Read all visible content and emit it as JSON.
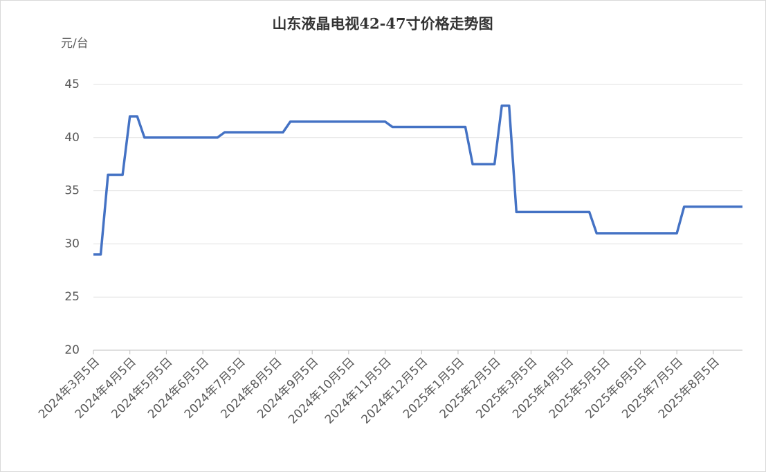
{
  "chart_data": {
    "type": "line",
    "title": "山东液晶电视42-47寸价格走势图",
    "y_label": "元/台",
    "categories": [
      "2024年3月5日",
      null,
      null,
      null,
      null,
      "2024年4月5日",
      null,
      null,
      null,
      null,
      "2024年5月5日",
      null,
      null,
      null,
      null,
      "2024年6月5日",
      null,
      null,
      null,
      null,
      "2024年7月5日",
      null,
      null,
      null,
      null,
      "2024年8月5日",
      null,
      null,
      null,
      null,
      "2024年9月5日",
      null,
      null,
      null,
      null,
      "2024年10月5日",
      null,
      null,
      null,
      null,
      "2024年11月5日",
      null,
      null,
      null,
      null,
      "2024年12月5日",
      null,
      null,
      null,
      null,
      "2025年1月5日",
      null,
      null,
      null,
      null,
      "2025年2月5日",
      null,
      null,
      null,
      null,
      "2025年3月5日",
      null,
      null,
      null,
      null,
      "2025年4月5日",
      null,
      null,
      null,
      null,
      "2025年5月5日",
      null,
      null,
      null,
      null,
      "2025年6月5日",
      null,
      null,
      null,
      null,
      "2025年7月5日",
      null,
      null,
      null,
      null,
      "2025年8月5日",
      null,
      null,
      null,
      null
    ],
    "values": [
      29,
      29,
      36.5,
      36.5,
      36.5,
      42,
      42,
      40,
      40,
      40,
      40,
      40,
      40,
      40,
      40,
      40,
      40,
      40,
      40.5,
      40.5,
      40.5,
      40.5,
      40.5,
      40.5,
      40.5,
      40.5,
      40.5,
      41.5,
      41.5,
      41.5,
      41.5,
      41.5,
      41.5,
      41.5,
      41.5,
      41.5,
      41.5,
      41.5,
      41.5,
      41.5,
      41.5,
      41,
      41,
      41,
      41,
      41,
      41,
      41,
      41,
      41,
      41,
      41,
      37.5,
      37.5,
      37.5,
      37.5,
      43,
      43,
      33,
      33,
      33,
      33,
      33,
      33,
      33,
      33,
      33,
      33,
      33,
      31,
      31,
      31,
      31,
      31,
      31,
      31,
      31,
      31,
      31,
      31,
      31,
      33.5,
      33.5,
      33.5,
      33.5,
      33.5,
      33.5,
      33.5,
      33.5,
      33.5
    ],
    "color": "#4472c4",
    "ylim": [
      20,
      45
    ],
    "yticks": [
      20,
      25,
      30,
      35,
      40,
      45
    ],
    "grid": true
  }
}
